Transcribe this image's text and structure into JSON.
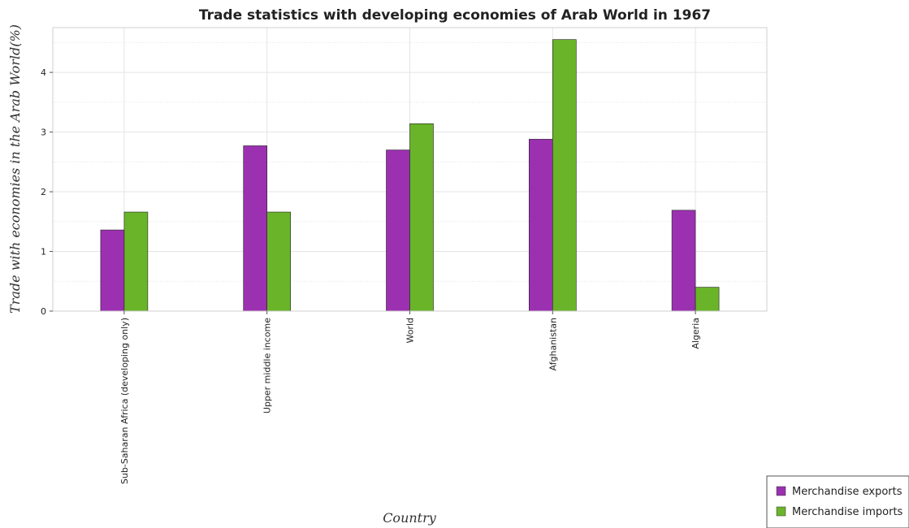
{
  "chart_data": {
    "type": "bar",
    "title": "Trade statistics with developing economies of Arab World in 1967",
    "xlabel": "Country",
    "ylabel": "Trade with economies in the Arab World(%)",
    "categories": [
      "Sub-Saharan Africa (developing only)",
      "Upper middle income",
      "World",
      "Afghanistan",
      "Algeria"
    ],
    "series": [
      {
        "name": "Merchandise exports",
        "color": "#9b30b0",
        "values": [
          1.36,
          2.77,
          2.7,
          2.88,
          1.69
        ]
      },
      {
        "name": "Merchandise imports",
        "color": "#6ab42a",
        "values": [
          1.66,
          1.66,
          3.14,
          4.55,
          0.4
        ]
      }
    ],
    "ylim": [
      0,
      4.75
    ],
    "yticks": [
      0,
      1,
      2,
      3,
      4
    ],
    "grid": true,
    "legend_position": "bottom-right"
  }
}
